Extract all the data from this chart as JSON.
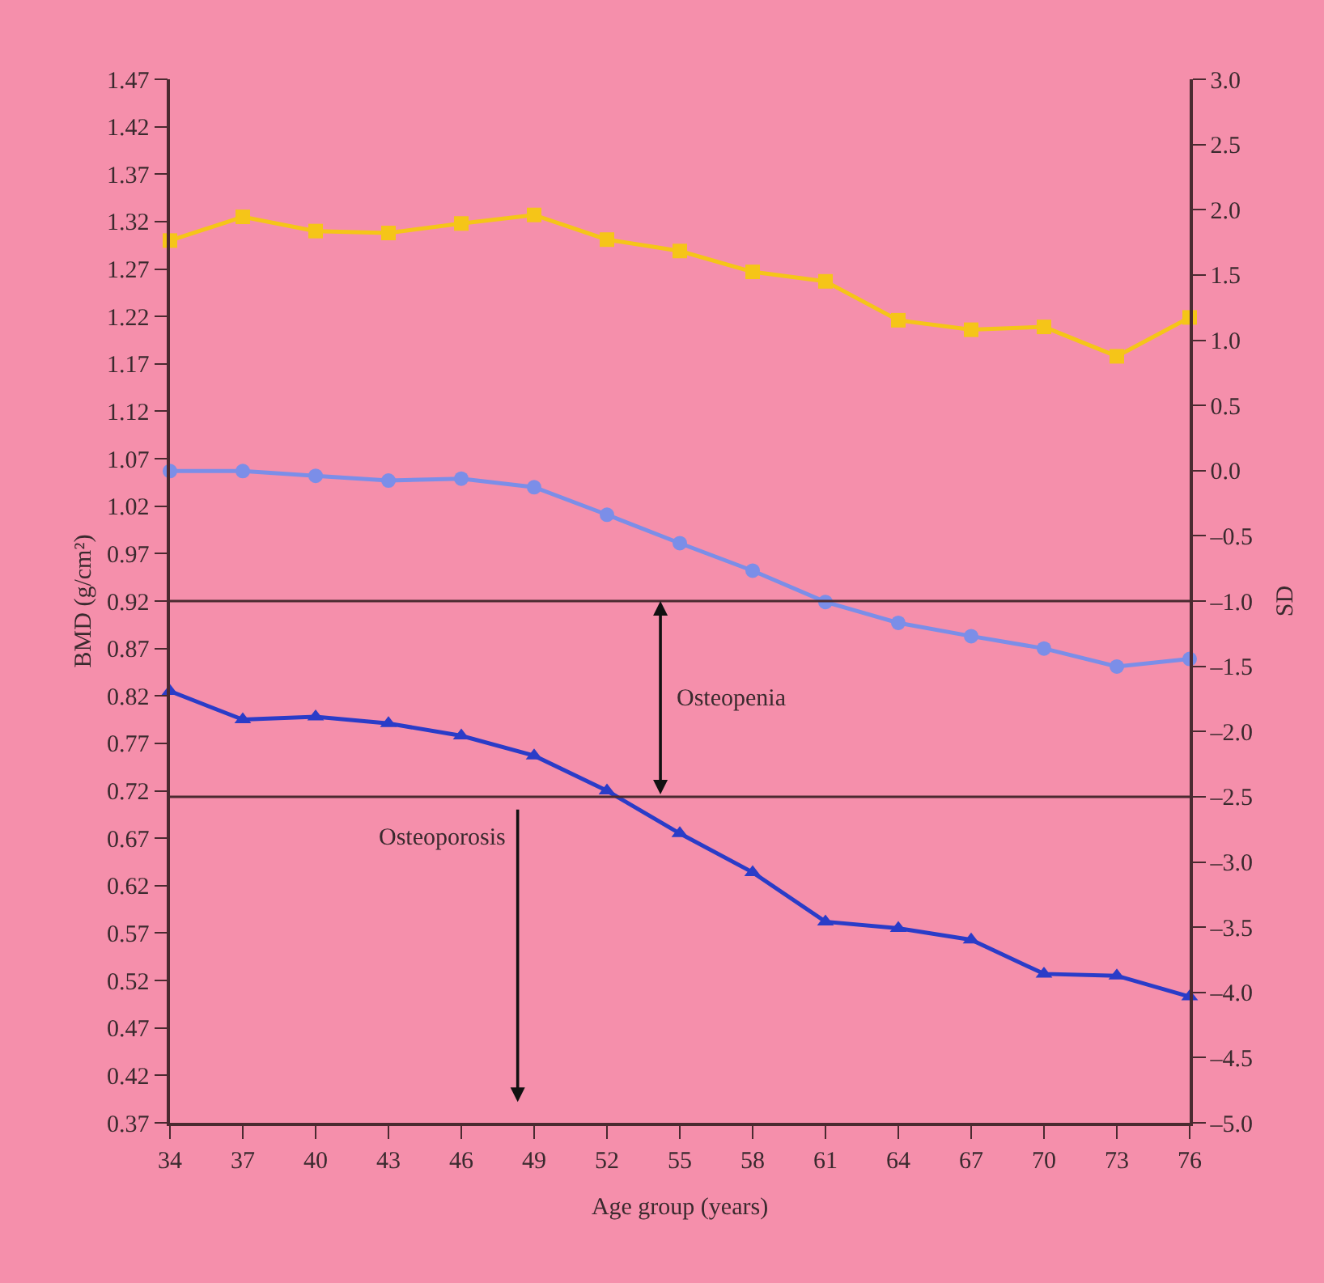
{
  "chart_data": {
    "type": "line",
    "xlabel": "Age group (years)",
    "ylabel": "BMD (g/cm²)",
    "y2label": "SD",
    "x": [
      34,
      37,
      40,
      43,
      46,
      49,
      52,
      55,
      58,
      61,
      64,
      67,
      70,
      73,
      76
    ],
    "series": [
      {
        "color": "#f5c518",
        "marker": "square",
        "values": [
          1.3,
          1.325,
          1.31,
          1.308,
          1.318,
          1.327,
          1.301,
          1.289,
          1.267,
          1.257,
          1.216,
          1.206,
          1.209,
          1.178,
          1.219
        ]
      },
      {
        "color": "#7b8ee8",
        "marker": "circle",
        "values": [
          1.057,
          1.057,
          1.052,
          1.047,
          1.049,
          1.04,
          1.011,
          0.981,
          0.952,
          0.919,
          0.897,
          0.883,
          0.87,
          0.851,
          0.859
        ]
      },
      {
        "color": "#2a3cc8",
        "marker": "triangle",
        "values": [
          0.825,
          0.795,
          0.798,
          0.791,
          0.778,
          0.757,
          0.72,
          0.675,
          0.634,
          0.582,
          0.575,
          0.563,
          0.527,
          0.525,
          0.503
        ]
      }
    ],
    "xlim": [
      34,
      76
    ],
    "xticks": [
      34,
      37,
      40,
      43,
      46,
      49,
      52,
      55,
      58,
      61,
      64,
      67,
      70,
      73,
      76
    ],
    "ylim": [
      0.37,
      1.47
    ],
    "yticks": [
      0.37,
      0.42,
      0.47,
      0.52,
      0.57,
      0.62,
      0.67,
      0.72,
      0.77,
      0.82,
      0.87,
      0.92,
      0.97,
      1.02,
      1.07,
      1.12,
      1.17,
      1.22,
      1.27,
      1.32,
      1.37,
      1.42,
      1.47
    ],
    "y2lim": [
      -5.0,
      3.0
    ],
    "y2ticks": [
      {
        "value": -5,
        "label": "–5.0"
      },
      {
        "value": -4.5,
        "label": "–4.5"
      },
      {
        "value": -4,
        "label": "–4.0"
      },
      {
        "value": -3.5,
        "label": "–3.5"
      },
      {
        "value": -3,
        "label": "–3.0"
      },
      {
        "value": -2.5,
        "label": "–2.5"
      },
      {
        "value": -2,
        "label": "–2.0"
      },
      {
        "value": -1.5,
        "label": "–1.5"
      },
      {
        "value": -1,
        "label": "–1.0"
      },
      {
        "value": -0.5,
        "label": "–0.5"
      },
      {
        "value": 0,
        "label": "0.0"
      },
      {
        "value": 0.5,
        "label": "0.5"
      },
      {
        "value": 1,
        "label": "1.0"
      },
      {
        "value": 1.5,
        "label": "1.5"
      },
      {
        "value": 2,
        "label": "2.0"
      },
      {
        "value": 2.5,
        "label": "2.5"
      },
      {
        "value": 3,
        "label": "3.0"
      }
    ],
    "ref_lines": [
      {
        "axis": "y2",
        "value": -1.0,
        "color": "#4a2a30"
      },
      {
        "axis": "y2",
        "value": -2.5,
        "color": "#4a2a30"
      }
    ],
    "annotations": [
      "Osteopenia",
      "Osteoporosis"
    ],
    "grid": false,
    "line_style": "solid"
  }
}
